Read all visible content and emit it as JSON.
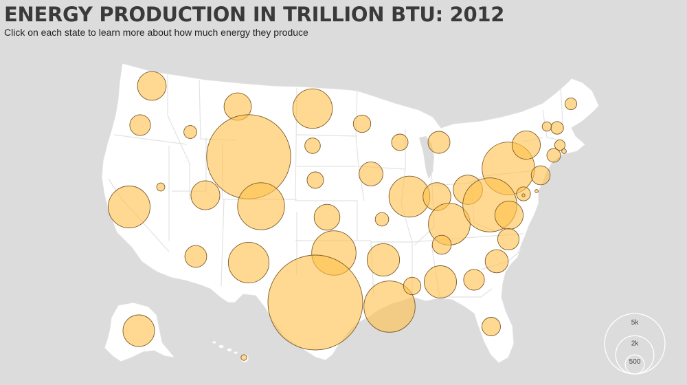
{
  "header": {
    "title": "ENERGY PRODUCTION IN TRILLION BTU: 2012",
    "subtitle": "Click on each state to learn more about how much energy they produce"
  },
  "colors": {
    "background": "#dcdcdc",
    "land": "#ffffff",
    "bubble_fill": "#ffc24d",
    "bubble_opacity": 0.62,
    "bubble_stroke": "#7a5a28"
  },
  "legend": {
    "labels": [
      "5k",
      "2k",
      "500"
    ],
    "values": [
      5000,
      2000,
      500
    ]
  },
  "states": [
    {
      "id": "washington",
      "value": 1130
    },
    {
      "id": "oregon",
      "value": 590
    },
    {
      "id": "idaho",
      "value": 230
    },
    {
      "id": "montana",
      "value": 1020
    },
    {
      "id": "wyoming",
      "value": 9680
    },
    {
      "id": "north-dakota",
      "value": 2140
    },
    {
      "id": "south-dakota",
      "value": 330
    },
    {
      "id": "nebraska",
      "value": 370
    },
    {
      "id": "minnesota",
      "value": 420
    },
    {
      "id": "wisconsin",
      "value": 370
    },
    {
      "id": "iowa",
      "value": 780
    },
    {
      "id": "michigan",
      "value": 660
    },
    {
      "id": "california",
      "value": 2400
    },
    {
      "id": "nevada",
      "value": 90
    },
    {
      "id": "utah",
      "value": 1150
    },
    {
      "id": "colorado",
      "value": 3020
    },
    {
      "id": "kansas",
      "value": 910
    },
    {
      "id": "missouri",
      "value": 250
    },
    {
      "id": "illinois",
      "value": 2300
    },
    {
      "id": "indiana",
      "value": 1070
    },
    {
      "id": "ohio",
      "value": 1170
    },
    {
      "id": "pennsylvania",
      "value": 3800
    },
    {
      "id": "new-york",
      "value": 1100
    },
    {
      "id": "kentucky",
      "value": 2390
    },
    {
      "id": "west-virginia",
      "value": 4000
    },
    {
      "id": "virginia",
      "value": 1100
    },
    {
      "id": "arizona",
      "value": 650
    },
    {
      "id": "new-mexico",
      "value": 2270
    },
    {
      "id": "oklahoma",
      "value": 2700
    },
    {
      "id": "texas",
      "value": 12300
    },
    {
      "id": "arkansas",
      "value": 1440
    },
    {
      "id": "louisiana",
      "value": 3600
    },
    {
      "id": "mississippi",
      "value": 420
    },
    {
      "id": "alabama",
      "value": 1430
    },
    {
      "id": "tennessee",
      "value": 490
    },
    {
      "id": "georgia",
      "value": 590
    },
    {
      "id": "south-carolina",
      "value": 730
    },
    {
      "id": "north-carolina",
      "value": 630
    },
    {
      "id": "florida",
      "value": 470
    },
    {
      "id": "maine",
      "value": 190
    },
    {
      "id": "new-hampshire",
      "value": 220
    },
    {
      "id": "vermont",
      "value": 120
    },
    {
      "id": "massachusetts",
      "value": 150
    },
    {
      "id": "connecticut",
      "value": 260
    },
    {
      "id": "rhode-island",
      "value": 30
    },
    {
      "id": "new-jersey",
      "value": 490
    },
    {
      "id": "delaware",
      "value": 15
    },
    {
      "id": "maryland",
      "value": 270
    },
    {
      "id": "district-of-columbia",
      "value": 5
    },
    {
      "id": "alaska",
      "value": 1370
    },
    {
      "id": "hawaii",
      "value": 45
    }
  ]
}
